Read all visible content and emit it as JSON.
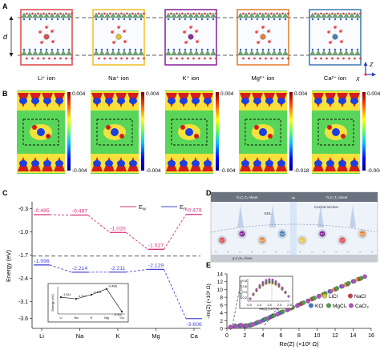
{
  "panel_letters": [
    "A",
    "B",
    "C",
    "D",
    "E"
  ],
  "panel_a": {
    "distance_label": "d",
    "axes": {
      "z": "Z",
      "x": "X"
    },
    "ions": [
      {
        "label": "Li⁺ ion",
        "color": "#e15050"
      },
      {
        "label": "Na⁺ ion",
        "color": "#f0c32d"
      },
      {
        "label": "K⁺ ion",
        "color": "#8c2d9b"
      },
      {
        "label": "Mg²⁺ ion",
        "color": "#e68232"
      },
      {
        "label": "Ca²⁺ ion",
        "color": "#4682b4"
      }
    ]
  },
  "panel_b": {
    "colorbars": [
      {
        "max": "0.004",
        "min": "-0.004"
      },
      {
        "max": "0.004",
        "min": "-0.004"
      },
      {
        "max": "0.004",
        "min": "-0.004"
      },
      {
        "max": "0.004",
        "min": "-0.018"
      },
      {
        "max": "0.004",
        "min": "-0.004"
      }
    ]
  },
  "chart_data": {
    "type": "line",
    "ylabel": "Energy (eV)",
    "categories": [
      "Li",
      "Na",
      "K",
      "Mg",
      "Ca"
    ],
    "ylim": [
      -3.9,
      -0.1
    ],
    "yticks": [
      "-0.3",
      "-1.0",
      "-1.7",
      "-2.4",
      "-3.1",
      "-3.6"
    ],
    "reference_line": -1.73,
    "series": [
      {
        "name": "E_w",
        "color": "#d6307a",
        "values": [
          -0.485,
          -0.497,
          -1.02,
          -1.527,
          -0.478
        ],
        "labels": [
          "-0.485",
          "-0.497",
          "-1.020",
          "-1.527",
          "-0.478"
        ]
      },
      {
        "name": "E_m",
        "color": "#4a4ad6",
        "values": [
          -1.996,
          -2.214,
          -2.211,
          -2.129,
          -3.606
        ],
        "labels": [
          "-1.996",
          "-2.214",
          "-2.211",
          "-2.129",
          "-3.606"
        ]
      }
    ],
    "legend": {
      "ew": "E",
      "ew_sub": "w",
      "em": "E",
      "em_sub": "m"
    },
    "inset": {
      "ylabel": "Energy (eV)",
      "categories": [
        "Li",
        "Na",
        "K",
        "Mg",
        "Ca"
      ],
      "values": [
        -1.511,
        -1.717,
        -1.191,
        -0.468,
        -3.311
      ],
      "labels": [
        "-1.511",
        "-1.717",
        "-1.191",
        "-0.468",
        "-3.311"
      ]
    }
  },
  "panel_d": {
    "top_sheet": "Ti₃C₂Tₓ sheet",
    "bottom_sheet": "g-C₃N₄ sheet",
    "center_sheet": "Central section",
    "small_label": "sp",
    "edl_label": "EDL",
    "ions": [
      "Li⁺",
      "K⁺",
      "Mg²⁺",
      "Ca²⁺",
      "Na⁺",
      "K⁺",
      "Li⁺",
      "Mg²⁺"
    ]
  },
  "panel_e": {
    "type": "scatter",
    "xlabel": "Re(Z) (×10³ Ω)",
    "ylabel": "-Im(Z) (×10³ Ω)",
    "xlim": [
      0,
      16
    ],
    "ylim": [
      0,
      14
    ],
    "xticks": [
      "0",
      "2",
      "4",
      "6",
      "8",
      "10",
      "12",
      "14",
      "16"
    ],
    "yticks": [
      "0",
      "2",
      "4",
      "6",
      "8",
      "10",
      "12",
      "14"
    ],
    "series": [
      {
        "name": "LiCl",
        "color": "#c8c83a",
        "points": [
          [
            0.4,
            0.3
          ],
          [
            0.9,
            0.6
          ],
          [
            1.5,
            0.7
          ],
          [
            2.0,
            0.6
          ],
          [
            2.6,
            0.8
          ],
          [
            3.3,
            1.4
          ],
          [
            4.1,
            2.2
          ],
          [
            5.0,
            3.1
          ],
          [
            6.0,
            4.1
          ],
          [
            7.1,
            5.2
          ],
          [
            8.2,
            6.3
          ],
          [
            9.4,
            7.5
          ],
          [
            10.6,
            8.7
          ],
          [
            11.9,
            10.0
          ],
          [
            13.2,
            11.3
          ],
          [
            14.5,
            12.6
          ]
        ]
      },
      {
        "name": "NaCl",
        "color": "#d23c3c",
        "points": [
          [
            0.4,
            0.3
          ],
          [
            0.9,
            0.6
          ],
          [
            1.5,
            0.8
          ],
          [
            2.1,
            0.7
          ],
          [
            2.7,
            0.9
          ],
          [
            3.4,
            1.5
          ],
          [
            4.2,
            2.3
          ],
          [
            5.1,
            3.2
          ],
          [
            6.1,
            4.2
          ],
          [
            7.2,
            5.3
          ],
          [
            8.3,
            6.4
          ],
          [
            9.5,
            7.6
          ],
          [
            10.8,
            8.8
          ],
          [
            12.1,
            10.1
          ],
          [
            13.4,
            11.4
          ],
          [
            14.7,
            12.7
          ]
        ]
      },
      {
        "name": "KCl",
        "color": "#3c78c8",
        "points": [
          [
            0.4,
            0.3
          ],
          [
            0.9,
            0.6
          ],
          [
            1.4,
            0.7
          ],
          [
            1.9,
            0.6
          ],
          [
            2.5,
            0.8
          ],
          [
            3.2,
            1.3
          ],
          [
            4.0,
            2.1
          ],
          [
            4.8,
            2.9
          ],
          [
            5.8,
            3.9
          ],
          [
            6.8,
            4.9
          ],
          [
            7.9,
            6.0
          ],
          [
            9.0,
            7.1
          ],
          [
            10.2,
            8.3
          ],
          [
            11.4,
            9.5
          ],
          [
            12.7,
            10.8
          ],
          [
            14.0,
            12.1
          ]
        ]
      },
      {
        "name": "MgCl₂",
        "color": "#4aa04a",
        "points": [
          [
            0.4,
            0.3
          ],
          [
            0.9,
            0.6
          ],
          [
            1.5,
            0.8
          ],
          [
            2.1,
            0.7
          ],
          [
            2.7,
            1.0
          ],
          [
            3.5,
            1.6
          ],
          [
            4.3,
            2.4
          ],
          [
            5.2,
            3.3
          ],
          [
            6.2,
            4.3
          ],
          [
            7.3,
            5.4
          ],
          [
            8.5,
            6.6
          ],
          [
            9.7,
            7.8
          ],
          [
            10.9,
            9.0
          ],
          [
            12.2,
            10.3
          ],
          [
            13.5,
            11.6
          ],
          [
            14.9,
            12.9
          ]
        ]
      },
      {
        "name": "CaCl₂",
        "color": "#b84cc8",
        "points": [
          [
            0.4,
            0.3
          ],
          [
            1.0,
            0.6
          ],
          [
            1.6,
            0.8
          ],
          [
            2.2,
            0.7
          ],
          [
            2.9,
            1.0
          ],
          [
            3.7,
            1.7
          ],
          [
            4.6,
            2.6
          ],
          [
            5.6,
            3.6
          ],
          [
            6.7,
            4.7
          ],
          [
            7.8,
            5.8
          ],
          [
            9.0,
            7.0
          ],
          [
            10.2,
            8.2
          ],
          [
            11.5,
            9.5
          ],
          [
            12.8,
            10.8
          ],
          [
            14.1,
            12.1
          ],
          [
            15.3,
            13.3
          ]
        ]
      }
    ],
    "inset": {
      "xlabel": "Re(Z) (×10³ Ω)",
      "ylabel": "-Im(Z) (×10³ Ω)",
      "xticks": [
        "0.5",
        "1.0",
        "1.5",
        "2.0",
        "2.5"
      ],
      "yticks": [
        "0.2",
        "0.4",
        "0.6",
        "0.8"
      ]
    }
  }
}
